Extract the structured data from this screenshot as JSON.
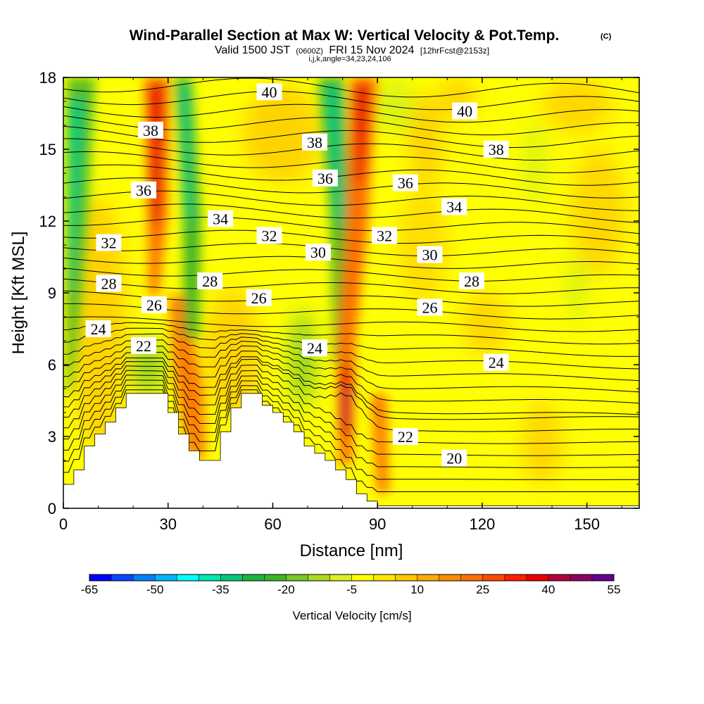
{
  "chart_data": {
    "type": "heatmap",
    "title": "Wind-Parallel Section at Max W: Vertical Velocity & Pot.Temp.",
    "copyright_mark": "(C)",
    "subtitle_valid": "Valid 1500 JST",
    "subtitle_utc": "(0600Z)",
    "subtitle_date": "FRI 15 Nov 2024",
    "subtitle_forecast": "[12hrFcst@2153z]",
    "subtitle_indices": "i,j,k,angle=34,23,24,106",
    "xlabel": "Distance [nm]",
    "ylabel": "Height [Kft MSL]",
    "xlim": [
      0,
      165
    ],
    "ylim": [
      0,
      18
    ],
    "x_ticks": [
      "0",
      "30",
      "60",
      "90",
      "120",
      "150"
    ],
    "x_tick_values": [
      0,
      30,
      60,
      90,
      120,
      150
    ],
    "y_ticks": [
      "0",
      "3",
      "6",
      "9",
      "12",
      "15",
      "18"
    ],
    "y_tick_values": [
      0,
      3,
      6,
      9,
      12,
      15,
      18
    ],
    "colorbar": {
      "label": "Vertical Velocity [cm/s]",
      "min": -65,
      "max": 55,
      "step": 5,
      "tick_labels": [
        "-65",
        "-50",
        "-35",
        "-20",
        "-5",
        "10",
        "25",
        "40",
        "55"
      ],
      "tick_values": [
        -65,
        -50,
        -35,
        -20,
        -5,
        10,
        25,
        40,
        55
      ],
      "colors": [
        "#0000ff",
        "#0a46ff",
        "#0080ff",
        "#00b4ff",
        "#00ffff",
        "#00e6b4",
        "#00c878",
        "#1eb43c",
        "#3cb428",
        "#78c828",
        "#aadc1e",
        "#dcf01e",
        "#ffff00",
        "#ffe600",
        "#ffc800",
        "#ffaa00",
        "#ff8c00",
        "#ff6e00",
        "#ff4a00",
        "#ff1e00",
        "#e60000",
        "#b4003c",
        "#8c0064",
        "#64008c"
      ]
    },
    "vertical_velocity_bands": [
      {
        "x": 5,
        "zmin": 0,
        "zmax": 18,
        "width": 5,
        "value": -30,
        "note": "downdraft near left edge"
      },
      {
        "x": 25,
        "zmin": 2,
        "zmax": 18,
        "width": 4,
        "value": 25
      },
      {
        "x": 35,
        "zmin": 3,
        "zmax": 18,
        "width": 4,
        "value": -25
      },
      {
        "x": 80,
        "zmin": 0,
        "zmax": 18,
        "width": 4,
        "value": 45
      },
      {
        "x": 76,
        "zmin": 6,
        "zmax": 18,
        "width": 3,
        "value": -35
      },
      {
        "x": 92,
        "zmin": 0,
        "zmax": 5,
        "width": 4,
        "value": 20
      }
    ],
    "terrain_profile": {
      "x": [
        0,
        3,
        6,
        9,
        12,
        15,
        18,
        21,
        24,
        27,
        30,
        33,
        36,
        39,
        42,
        45,
        48,
        51,
        54,
        57,
        60,
        63,
        66,
        69,
        72,
        75,
        78,
        81,
        84,
        87,
        90,
        165
      ],
      "z": [
        1.0,
        1.6,
        2.6,
        3.1,
        3.6,
        4.2,
        4.8,
        4.8,
        4.8,
        4.8,
        4.0,
        3.1,
        2.4,
        2.0,
        2.0,
        3.2,
        4.2,
        4.8,
        4.8,
        4.3,
        4.0,
        3.6,
        3.2,
        2.6,
        2.3,
        2.0,
        1.6,
        1.2,
        0.6,
        0.3,
        0.1,
        0.1
      ]
    },
    "theta_contour_labels": [
      {
        "value": "40",
        "x": 59,
        "z": 17.4
      },
      {
        "value": "40",
        "x": 115,
        "z": 16.6
      },
      {
        "value": "38",
        "x": 25,
        "z": 15.8
      },
      {
        "value": "38",
        "x": 72,
        "z": 15.3
      },
      {
        "value": "38",
        "x": 124,
        "z": 15.0
      },
      {
        "value": "36",
        "x": 23,
        "z": 13.3
      },
      {
        "value": "36",
        "x": 75,
        "z": 13.8
      },
      {
        "value": "36",
        "x": 98,
        "z": 13.6
      },
      {
        "value": "34",
        "x": 45,
        "z": 12.1
      },
      {
        "value": "34",
        "x": 112,
        "z": 12.6
      },
      {
        "value": "32",
        "x": 13,
        "z": 11.1
      },
      {
        "value": "32",
        "x": 59,
        "z": 11.4
      },
      {
        "value": "32",
        "x": 92,
        "z": 11.4
      },
      {
        "value": "30",
        "x": 73,
        "z": 10.7
      },
      {
        "value": "30",
        "x": 105,
        "z": 10.6
      },
      {
        "value": "28",
        "x": 13,
        "z": 9.4
      },
      {
        "value": "28",
        "x": 42,
        "z": 9.5
      },
      {
        "value": "28",
        "x": 117,
        "z": 9.5
      },
      {
        "value": "26",
        "x": 26,
        "z": 8.5
      },
      {
        "value": "26",
        "x": 56,
        "z": 8.8
      },
      {
        "value": "26",
        "x": 105,
        "z": 8.4
      },
      {
        "value": "24",
        "x": 10,
        "z": 7.5
      },
      {
        "value": "24",
        "x": 72,
        "z": 6.7
      },
      {
        "value": "24",
        "x": 124,
        "z": 6.1
      },
      {
        "value": "22",
        "x": 23,
        "z": 6.8
      },
      {
        "value": "22",
        "x": 98,
        "z": 3.0
      },
      {
        "value": "20",
        "x": 112,
        "z": 2.1
      }
    ]
  }
}
